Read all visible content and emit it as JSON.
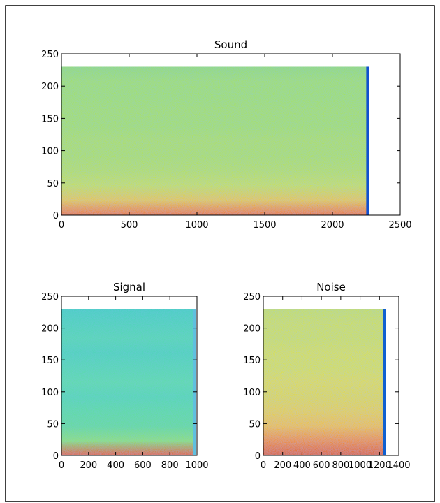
{
  "chart_data": [
    {
      "type": "spectrogram",
      "title": "Sound",
      "xlim": [
        0,
        2500
      ],
      "xticks": [
        0,
        500,
        1000,
        1500,
        2000,
        2500
      ],
      "ylim": [
        0,
        250
      ],
      "yticks": [
        0,
        50,
        100,
        150,
        200,
        250
      ],
      "x_extent": [
        0,
        2270
      ],
      "y_extent": [
        0,
        230
      ],
      "colors": [
        "#98dc70",
        "#a4e064",
        "#a4e064",
        "#a8e060",
        "#a8e060",
        "#b0e05a",
        "#b0e05a",
        "#b8e056",
        "#c8e050",
        "#e8c838",
        "#f07820"
      ],
      "edge_color": "#1050d0"
    },
    {
      "type": "spectrogram",
      "title": "Signal",
      "xlim": [
        0,
        1000
      ],
      "xticks": [
        0,
        200,
        400,
        600,
        800,
        1000
      ],
      "ylim": [
        0,
        250
      ],
      "yticks": [
        0,
        50,
        100,
        150,
        200,
        250
      ],
      "x_extent": [
        0,
        990
      ],
      "y_extent": [
        0,
        230
      ],
      "colors": [
        "#48d0c0",
        "#50d4b8",
        "#58d8b0",
        "#50d4b8",
        "#58d8b0",
        "#60dca8",
        "#58d8b0",
        "#60dca0",
        "#68dc98",
        "#90e070",
        "#e86020"
      ],
      "edge_color": "#60c0e0"
    },
    {
      "type": "spectrogram",
      "title": "Noise",
      "xlim": [
        0,
        1400
      ],
      "xticks": [
        0,
        200,
        400,
        600,
        800,
        1000,
        1200,
        1400
      ],
      "ylim": [
        0,
        250
      ],
      "yticks": [
        0,
        50,
        100,
        150,
        200,
        250
      ],
      "x_extent": [
        0,
        1270
      ],
      "y_extent": [
        0,
        230
      ],
      "colors": [
        "#c8e058",
        "#d0e050",
        "#d0e050",
        "#d8e048",
        "#d8e048",
        "#e0dc44",
        "#e0d840",
        "#e8d03c",
        "#f0c030",
        "#f09020",
        "#e06010"
      ],
      "edge_color": "#1060d0"
    }
  ]
}
